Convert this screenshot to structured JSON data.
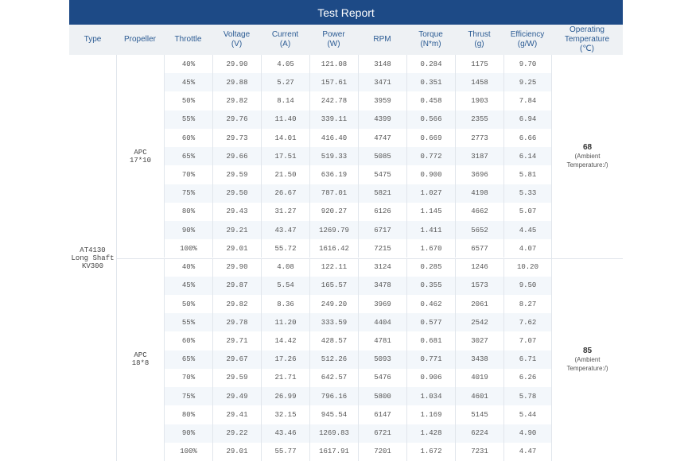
{
  "header": {
    "title": "Test Report"
  },
  "table": {
    "columns": [
      [
        "Type"
      ],
      [
        "Propeller"
      ],
      [
        "Throttle"
      ],
      [
        "Voltage",
        "(V)"
      ],
      [
        "Current",
        "(A)"
      ],
      [
        "Power",
        "(W)"
      ],
      [
        "RPM"
      ],
      [
        "Torque",
        "(N*m)"
      ],
      [
        "Thrust",
        "(g)"
      ],
      [
        "Efficiency",
        "(g/W)"
      ],
      [
        "Operating",
        "Temperature",
        "(℃)"
      ]
    ],
    "type": [
      "AT4130",
      "Long Shaft",
      "KV300"
    ],
    "groups": [
      {
        "propeller": [
          "APC",
          "17*10"
        ],
        "temperature": "68",
        "temperature_note": [
          "(Ambient",
          "Temperature:/)"
        ],
        "rows": [
          [
            "40%",
            "29.90",
            "4.05",
            "121.08",
            "3148",
            "0.284",
            "1175",
            "9.70"
          ],
          [
            "45%",
            "29.88",
            "5.27",
            "157.61",
            "3471",
            "0.351",
            "1458",
            "9.25"
          ],
          [
            "50%",
            "29.82",
            "8.14",
            "242.78",
            "3959",
            "0.458",
            "1903",
            "7.84"
          ],
          [
            "55%",
            "29.76",
            "11.40",
            "339.11",
            "4399",
            "0.566",
            "2355",
            "6.94"
          ],
          [
            "60%",
            "29.73",
            "14.01",
            "416.40",
            "4747",
            "0.669",
            "2773",
            "6.66"
          ],
          [
            "65%",
            "29.66",
            "17.51",
            "519.33",
            "5085",
            "0.772",
            "3187",
            "6.14"
          ],
          [
            "70%",
            "29.59",
            "21.50",
            "636.19",
            "5475",
            "0.900",
            "3696",
            "5.81"
          ],
          [
            "75%",
            "29.50",
            "26.67",
            "787.01",
            "5821",
            "1.027",
            "4198",
            "5.33"
          ],
          [
            "80%",
            "29.43",
            "31.27",
            "920.27",
            "6126",
            "1.145",
            "4662",
            "5.07"
          ],
          [
            "90%",
            "29.21",
            "43.47",
            "1269.79",
            "6717",
            "1.411",
            "5652",
            "4.45"
          ],
          [
            "100%",
            "29.01",
            "55.72",
            "1616.42",
            "7215",
            "1.670",
            "6577",
            "4.07"
          ]
        ]
      },
      {
        "propeller": [
          "APC",
          "18*8"
        ],
        "temperature": "85",
        "temperature_note": [
          "(Ambient",
          "Temperature:/)"
        ],
        "rows": [
          [
            "40%",
            "29.90",
            "4.08",
            "122.11",
            "3124",
            "0.285",
            "1246",
            "10.20"
          ],
          [
            "45%",
            "29.87",
            "5.54",
            "165.57",
            "3478",
            "0.355",
            "1573",
            "9.50"
          ],
          [
            "50%",
            "29.82",
            "8.36",
            "249.20",
            "3969",
            "0.462",
            "2061",
            "8.27"
          ],
          [
            "55%",
            "29.78",
            "11.20",
            "333.59",
            "4404",
            "0.577",
            "2542",
            "7.62"
          ],
          [
            "60%",
            "29.71",
            "14.42",
            "428.57",
            "4781",
            "0.681",
            "3027",
            "7.07"
          ],
          [
            "65%",
            "29.67",
            "17.26",
            "512.26",
            "5093",
            "0.771",
            "3438",
            "6.71"
          ],
          [
            "70%",
            "29.59",
            "21.71",
            "642.57",
            "5476",
            "0.906",
            "4019",
            "6.26"
          ],
          [
            "75%",
            "29.49",
            "26.99",
            "796.16",
            "5800",
            "1.034",
            "4601",
            "5.78"
          ],
          [
            "80%",
            "29.41",
            "32.15",
            "945.54",
            "6147",
            "1.169",
            "5145",
            "5.44"
          ],
          [
            "90%",
            "29.22",
            "43.46",
            "1269.83",
            "6721",
            "1.428",
            "6224",
            "4.90"
          ],
          [
            "100%",
            "29.01",
            "55.77",
            "1617.91",
            "7201",
            "1.672",
            "7231",
            "4.47"
          ]
        ]
      }
    ]
  }
}
